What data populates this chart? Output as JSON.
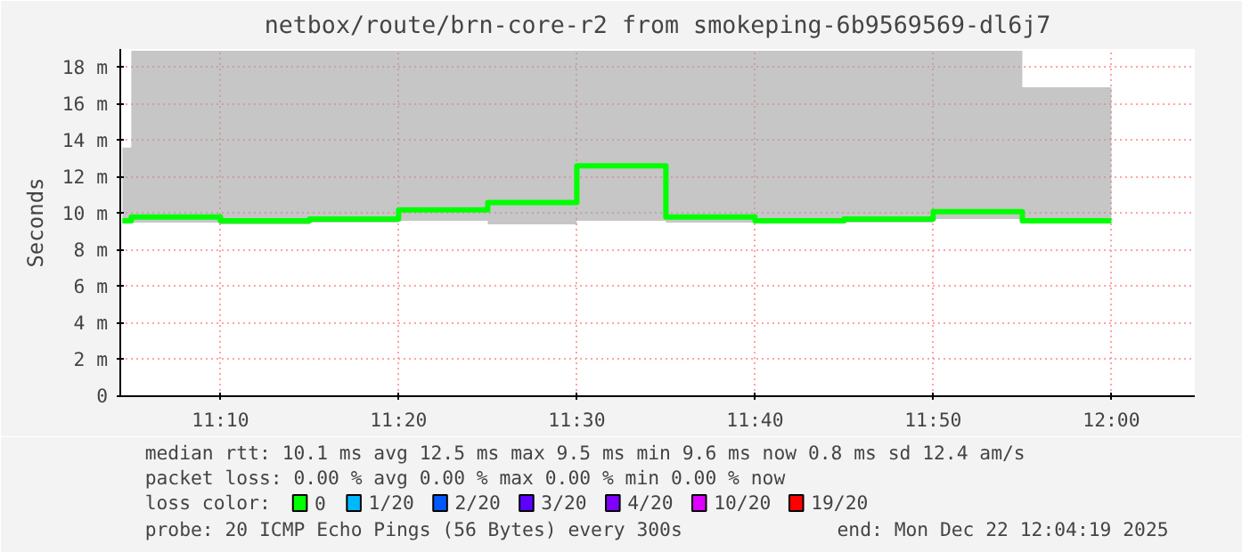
{
  "chart_data": {
    "type": "step",
    "title": "netbox/route/brn-core-r2 from smokeping-6b9569569-dl6j7",
    "ylabel": "Seconds",
    "x": [
      11.075,
      11.0833,
      11.1667,
      11.25,
      11.3333,
      11.4167,
      11.5,
      11.5833,
      11.6667,
      11.75,
      11.8333,
      11.9167,
      12.0
    ],
    "series": [
      {
        "name": "0",
        "color": "#00ff00",
        "values": [
          9.6,
          9.8,
          9.6,
          9.7,
          10.2,
          10.6,
          12.6,
          9.8,
          9.6,
          9.7,
          10.1,
          9.6,
          9.6
        ],
        "lower": [
          9.5,
          9.5,
          9.4,
          9.5,
          9.6,
          9.4,
          9.6,
          9.5,
          9.5,
          9.5,
          9.7,
          9.5,
          9.5
        ],
        "upper": [
          13.6,
          18.9,
          18.9,
          18.9,
          18.9,
          18.9,
          18.9,
          18.9,
          18.9,
          18.9,
          18.9,
          16.9,
          16.9
        ]
      },
      {
        "name": "1/20",
        "color": "#00b8ff",
        "values": [
          null,
          null,
          null,
          null,
          null,
          null,
          null,
          null,
          null,
          null,
          null,
          null,
          null
        ]
      },
      {
        "name": "2/20",
        "color": "#0059ff",
        "values": [
          null,
          null,
          null,
          null,
          null,
          null,
          null,
          null,
          null,
          null,
          null,
          null,
          null
        ]
      },
      {
        "name": "3/20",
        "color": "#5e00ff",
        "values": [
          null,
          null,
          null,
          null,
          null,
          null,
          null,
          null,
          null,
          null,
          null,
          null,
          null
        ]
      },
      {
        "name": "4/20",
        "color": "#7e00ff",
        "values": [
          null,
          null,
          null,
          null,
          null,
          null,
          null,
          null,
          null,
          null,
          null,
          null,
          null
        ]
      },
      {
        "name": "10/20",
        "color": "#dd00ff",
        "values": [
          null,
          null,
          null,
          null,
          null,
          null,
          null,
          null,
          null,
          null,
          null,
          null,
          null
        ]
      },
      {
        "name": "19/20",
        "color": "#ff0000",
        "values": [
          null,
          null,
          null,
          null,
          null,
          null,
          null,
          null,
          null,
          null,
          null,
          null,
          null
        ]
      }
    ],
    "legend_title": "loss color:",
    "legend": "bottom",
    "xlim": [
      11.073,
      12.078
    ],
    "xticks": [
      {
        "value": 11.1667,
        "label": "11:10"
      },
      {
        "value": 11.3333,
        "label": "11:20"
      },
      {
        "value": 11.5,
        "label": "11:30"
      },
      {
        "value": 11.6667,
        "label": "11:40"
      },
      {
        "value": 11.8333,
        "label": "11:50"
      },
      {
        "value": 12.0,
        "label": "12:00"
      }
    ],
    "ylim": [
      0,
      19
    ],
    "yticks": [
      0,
      {
        "value": 2,
        "label": "2 m"
      },
      {
        "value": 4,
        "label": "4 m"
      },
      {
        "value": 6,
        "label": "6 m"
      },
      {
        "value": 8,
        "label": "8 m"
      },
      {
        "value": 10,
        "label": "10 m"
      },
      {
        "value": 12,
        "label": "12 m"
      },
      {
        "value": 14,
        "label": "14 m"
      },
      {
        "value": 16,
        "label": "16 m"
      },
      {
        "value": 18,
        "label": "18 m"
      }
    ],
    "grid": true,
    "line_style": "solid",
    "marker": "none",
    "annotations": [
      "median rtt:  10.1 ms avg  12.5 ms max   9.5 ms min   9.6 ms now   0.8 ms sd  12.4   am/s",
      "packet loss: 0.00 % avg  0.00 % max  0.00 % min  0.00 % now",
      "probe:       20 ICMP Echo Pings (56 Bytes) every 300s",
      "end: Mon Dec 22 12:04:19 2025"
    ]
  }
}
